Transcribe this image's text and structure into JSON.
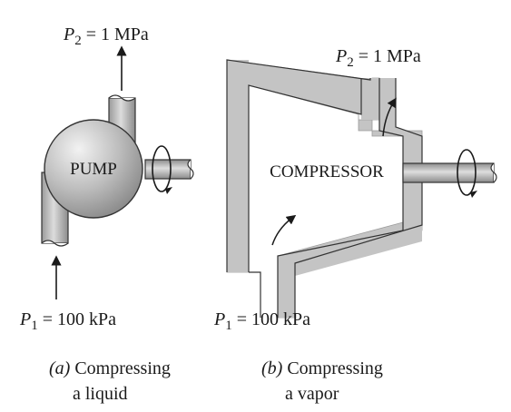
{
  "pump": {
    "name": "PUMP",
    "outlet": {
      "symbol": "P",
      "subscript": "2",
      "rest": " = 1 MPa"
    },
    "inlet": {
      "symbol": "P",
      "subscript": "1",
      "rest": " = 100 kPa"
    },
    "caption": {
      "tag": "(a)",
      "line1": " Compressing",
      "line2": "a liquid"
    }
  },
  "compressor": {
    "name": "COMPRESSOR",
    "outlet": {
      "symbol": "P",
      "subscript": "2",
      "rest": " = 1 MPa"
    },
    "inlet": {
      "symbol": "P",
      "subscript": "1",
      "rest": " = 100 kPa"
    },
    "caption": {
      "tag": "(b)",
      "line1": " Compressing",
      "line2": "a vapor"
    }
  },
  "colors": {
    "housing": "#c4c4c4",
    "outline": "#333333",
    "text": "#1a1a1a"
  }
}
